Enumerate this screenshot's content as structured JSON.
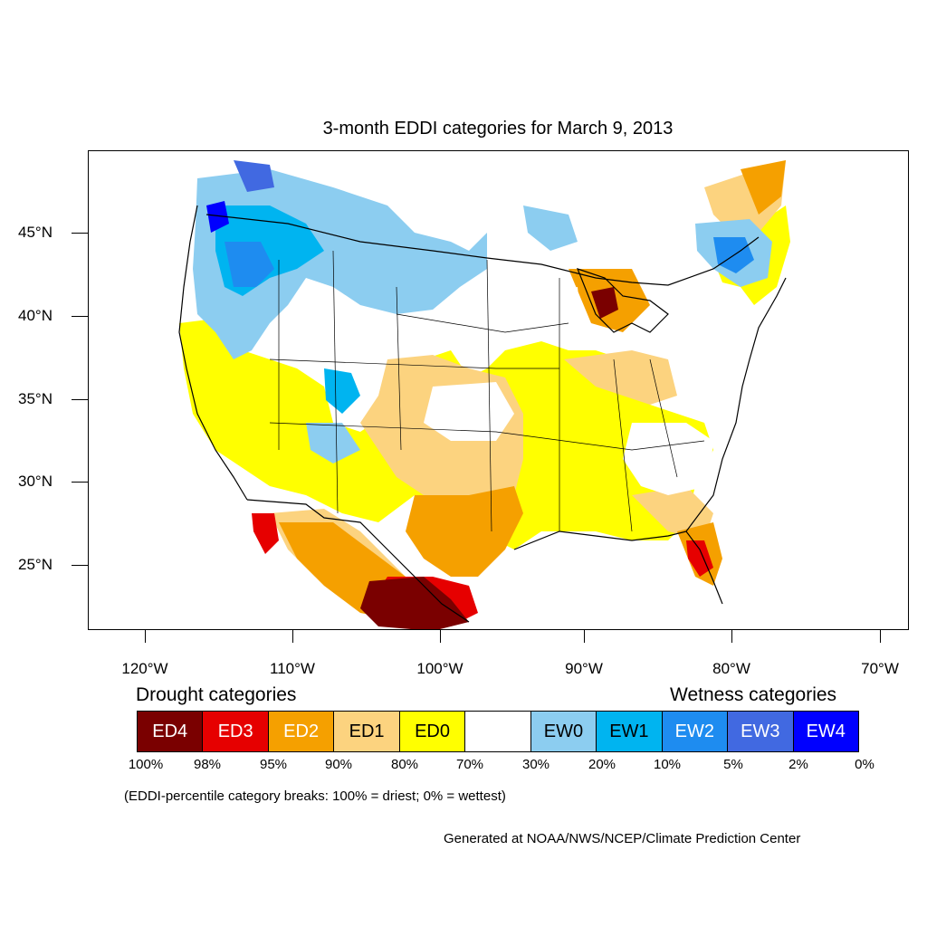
{
  "title": "3-month EDDI categories for March 9, 2013",
  "axes": {
    "lat_labels": [
      "45°N",
      "40°N",
      "35°N",
      "30°N",
      "25°N"
    ],
    "lon_labels": [
      "120°W",
      "110°W",
      "100°W",
      "90°W",
      "80°W",
      "70°W"
    ]
  },
  "legend": {
    "drought_heading": "Drought categories",
    "wetness_heading": "Wetness categories",
    "categories": [
      {
        "label": "ED4",
        "color": "#7a0000"
      },
      {
        "label": "ED3",
        "color": "#e60000"
      },
      {
        "label": "ED2",
        "color": "#f5a000"
      },
      {
        "label": "ED1",
        "color": "#fcd37f"
      },
      {
        "label": "ED0",
        "color": "#ffff00"
      },
      {
        "label": "",
        "color": "#ffffff"
      },
      {
        "label": "EW0",
        "color": "#8ccdf0"
      },
      {
        "label": "EW1",
        "color": "#00b4f0"
      },
      {
        "label": "EW2",
        "color": "#1e8cf0"
      },
      {
        "label": "EW3",
        "color": "#4169e1"
      },
      {
        "label": "EW4",
        "color": "#0000ff"
      }
    ],
    "percentiles": [
      "100%",
      "98%",
      "95%",
      "90%",
      "80%",
      "70%",
      "30%",
      "20%",
      "10%",
      "5%",
      "2%",
      "0%"
    ]
  },
  "note": "(EDDI-percentile category breaks: 100% = driest; 0% = wettest)",
  "credit": "Generated at NOAA/NWS/NCEP/Climate Prediction Center"
}
